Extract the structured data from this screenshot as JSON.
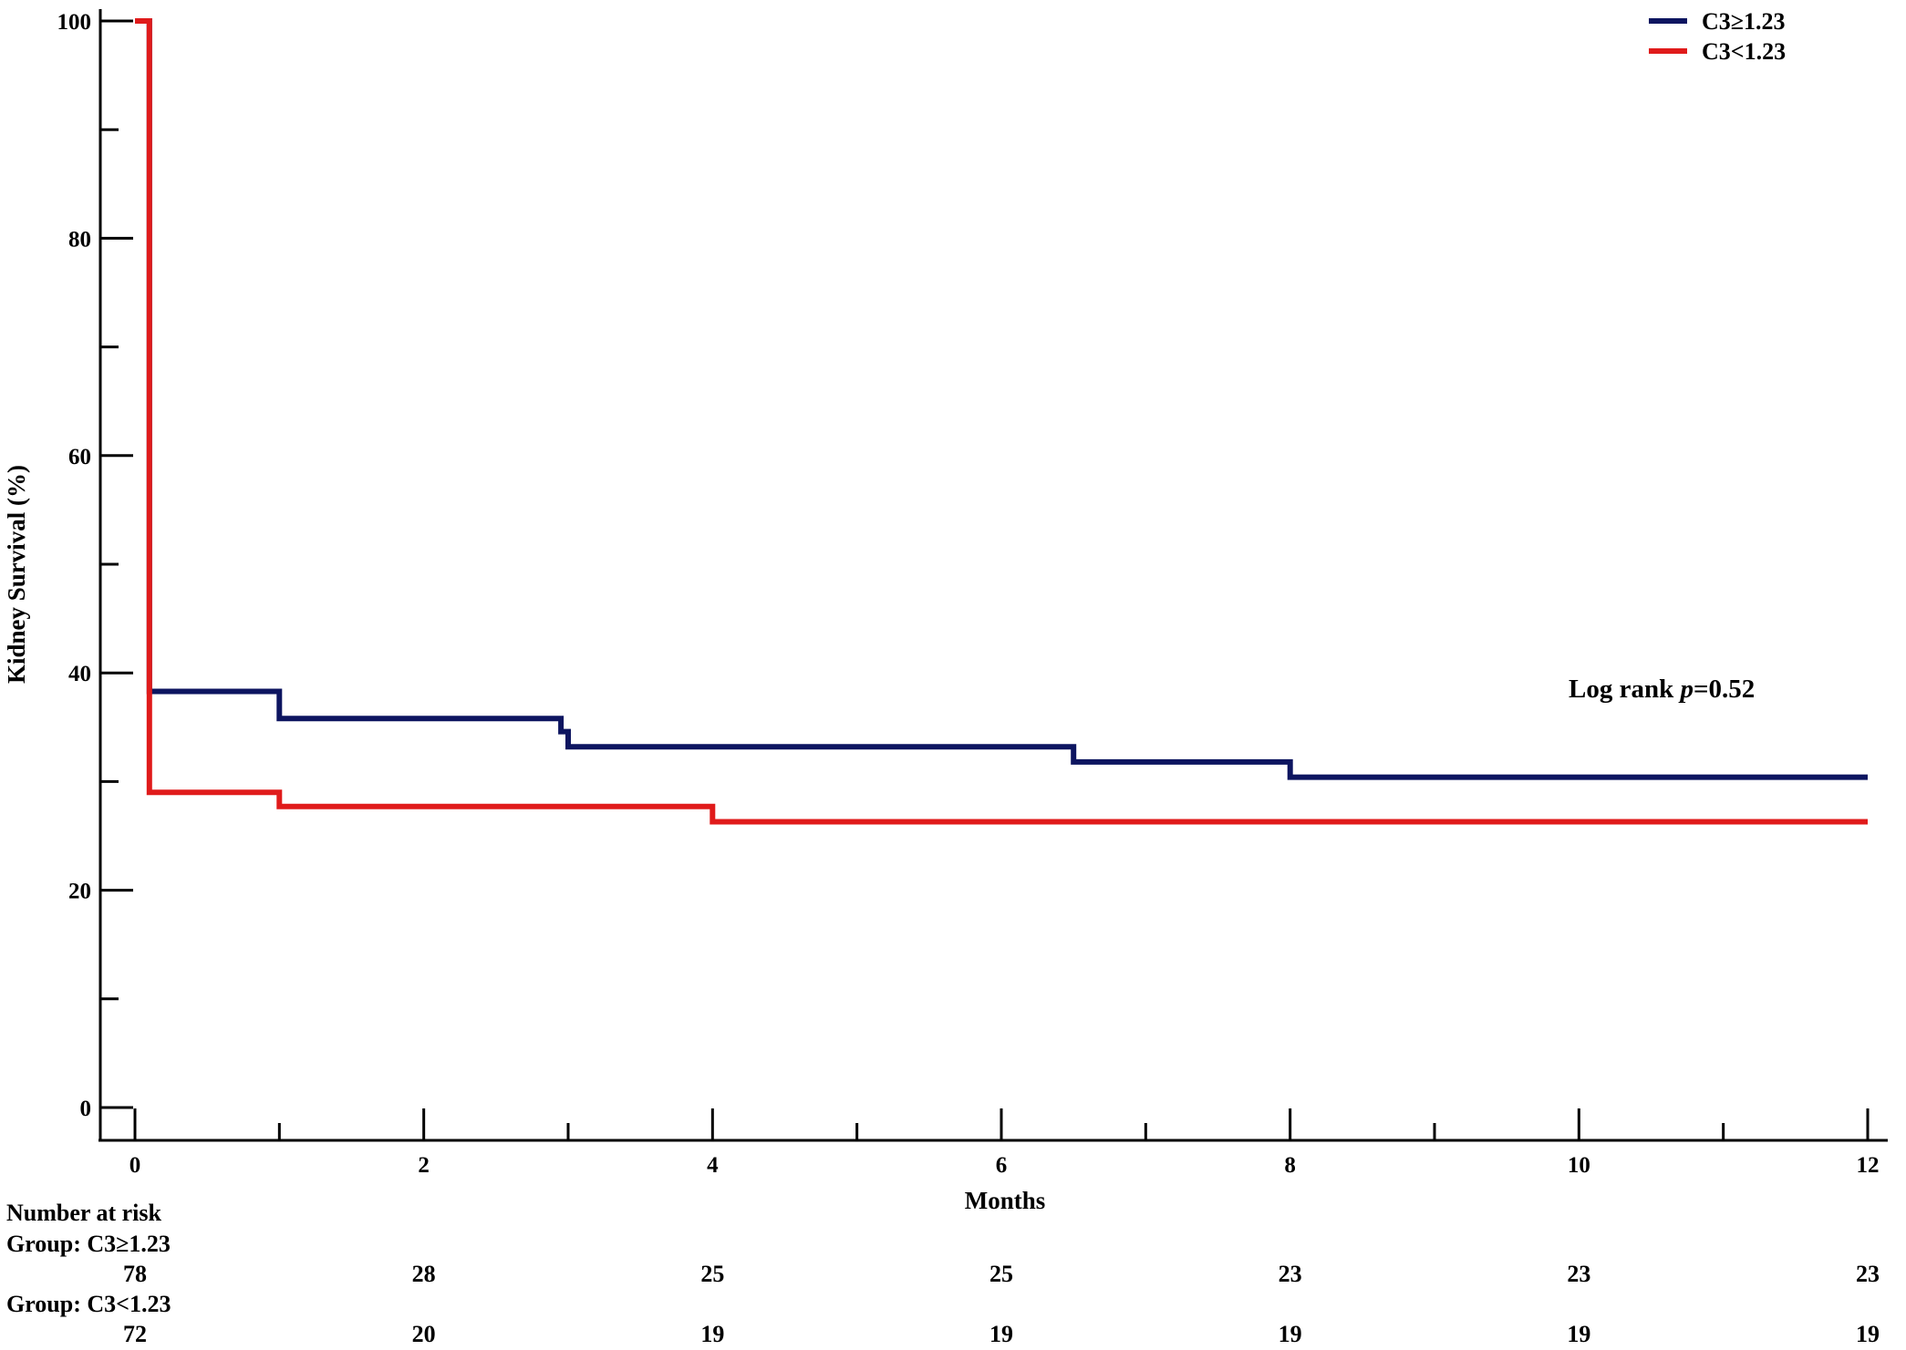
{
  "chart_data": {
    "type": "line",
    "step": true,
    "xlabel": "Months",
    "ylabel": "Kidney Survival (%)",
    "xlim": [
      0,
      12
    ],
    "ylim": [
      0,
      100
    ],
    "x_ticks": [
      0,
      2,
      4,
      6,
      8,
      10,
      12
    ],
    "y_ticks": [
      0,
      20,
      40,
      60,
      80,
      100
    ],
    "legend_position": "top-right",
    "annotation": {
      "prefix": "Log rank ",
      "italic": "p",
      "suffix": "=0.52"
    },
    "series": [
      {
        "name": "C3≥1.23",
        "color": "#0d1560",
        "points": [
          [
            0,
            100
          ],
          [
            0.1,
            100
          ],
          [
            0.1,
            38.3
          ],
          [
            1.0,
            38.3
          ],
          [
            1.0,
            35.8
          ],
          [
            2.95,
            35.8
          ],
          [
            2.95,
            34.6
          ],
          [
            3.0,
            34.6
          ],
          [
            3.0,
            33.2
          ],
          [
            6.5,
            33.2
          ],
          [
            6.5,
            31.8
          ],
          [
            8.0,
            31.8
          ],
          [
            8.0,
            30.4
          ],
          [
            12.0,
            30.4
          ]
        ]
      },
      {
        "name": "C3<1.23",
        "color": "#e01b1b",
        "points": [
          [
            0,
            100
          ],
          [
            0.1,
            100
          ],
          [
            0.1,
            29.0
          ],
          [
            1.0,
            29.0
          ],
          [
            1.0,
            27.7
          ],
          [
            4.0,
            27.7
          ],
          [
            4.0,
            26.3
          ],
          [
            12.0,
            26.3
          ]
        ]
      }
    ],
    "risk_table": {
      "title": "Number at risk",
      "times": [
        0,
        2,
        4,
        6,
        8,
        10,
        12
      ],
      "groups": [
        {
          "label": "Group: C3≥1.23",
          "counts": [
            "78",
            "28",
            "25",
            "25",
            "23",
            "23",
            "23"
          ]
        },
        {
          "label": "Group: C3<1.23",
          "counts": [
            "72",
            "20",
            "19",
            "19",
            "19",
            "19",
            "19"
          ]
        }
      ]
    }
  }
}
